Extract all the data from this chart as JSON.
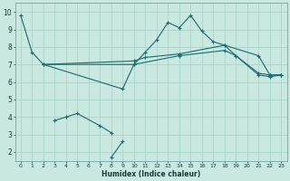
{
  "xlabel": "Humidex (Indice chaleur)",
  "xlim": [
    -0.5,
    23.5
  ],
  "ylim": [
    1.5,
    10.5
  ],
  "xticks": [
    0,
    1,
    2,
    3,
    4,
    5,
    6,
    7,
    8,
    9,
    10,
    11,
    12,
    13,
    14,
    15,
    16,
    17,
    18,
    19,
    20,
    21,
    22,
    23
  ],
  "yticks": [
    2,
    3,
    4,
    5,
    6,
    7,
    8,
    9,
    10
  ],
  "bg_color": "#c8e8e0",
  "grid_color": "#aad4cc",
  "line_color": "#1a6b6b",
  "series": [
    {
      "x": [
        0,
        1,
        2,
        9,
        10,
        11,
        12,
        13,
        14,
        15,
        16,
        17,
        18,
        19,
        21,
        22,
        23
      ],
      "y": [
        9.8,
        7.7,
        7.0,
        5.6,
        7.0,
        7.7,
        8.4,
        9.4,
        9.1,
        9.8,
        8.9,
        8.3,
        8.1,
        7.5,
        6.4,
        6.3,
        6.4
      ]
    },
    {
      "x": [
        2,
        10,
        11,
        14,
        18,
        21,
        22,
        23
      ],
      "y": [
        7.0,
        7.2,
        7.4,
        7.6,
        8.1,
        7.5,
        6.4,
        6.4
      ]
    },
    {
      "x": [
        2,
        10,
        14,
        18,
        19,
        21,
        22,
        23
      ],
      "y": [
        7.0,
        7.0,
        7.5,
        7.8,
        7.5,
        6.5,
        6.4,
        6.4
      ]
    },
    {
      "x": [
        3,
        4,
        5,
        7,
        8
      ],
      "y": [
        3.8,
        4.0,
        4.2,
        3.5,
        3.1
      ]
    },
    {
      "x": [
        8,
        9
      ],
      "y": [
        1.7,
        2.6
      ]
    }
  ]
}
